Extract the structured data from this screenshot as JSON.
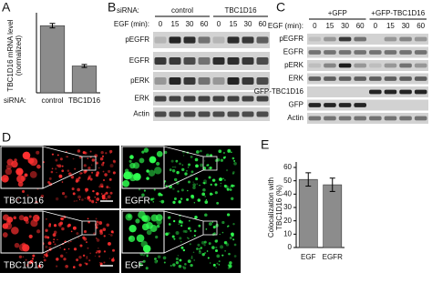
{
  "panel_labels": [
    "A",
    "B",
    "C",
    "D",
    "E"
  ],
  "chart_data": [
    {
      "type": "bar",
      "ylabel": [
        "TBC1D16 mRNA level",
        "(normalized)"
      ],
      "xlabel": "siRNA:",
      "categories": [
        "control",
        "TBC1D16"
      ],
      "values": [
        0.9,
        0.36
      ],
      "errors": [
        0.03,
        0.02
      ],
      "ylim": [
        0,
        1
      ],
      "color": "#8c8c8c"
    },
    {
      "type": "bar",
      "ylabel": [
        "Colocalization with",
        "TBC1D16 (%)"
      ],
      "categories": [
        "EGF",
        "EGFR"
      ],
      "values": [
        51,
        47
      ],
      "errors": [
        5,
        5
      ],
      "ylim": [
        0,
        60
      ],
      "yticks": [
        0,
        10,
        20,
        30,
        40,
        50,
        60
      ],
      "color": "#8c8c8c"
    }
  ],
  "blot_b": {
    "condition_label": "siRNA:",
    "groups": [
      "control",
      "TBC1D16"
    ],
    "time_label": "EGF (min):",
    "times": [
      0,
      15,
      30,
      60,
      0,
      15,
      30,
      60
    ],
    "rows": [
      "pEGFR",
      "EGFR",
      "pERK",
      "ERK",
      "Actin"
    ]
  },
  "blot_c": {
    "groups": [
      "+GFP",
      "+GFP-TBC1D16"
    ],
    "time_label": "EGF (min):",
    "times": [
      0,
      15,
      30,
      60,
      0,
      15,
      30,
      60
    ],
    "rows": [
      "pEGFR",
      "EGFR",
      "pERK",
      "ERK",
      "GFP-TBC1D16",
      "GFP",
      "Actin"
    ]
  },
  "micrographs": [
    "TBC1D16",
    "EGFR",
    "TBC1D16",
    "EGF"
  ]
}
